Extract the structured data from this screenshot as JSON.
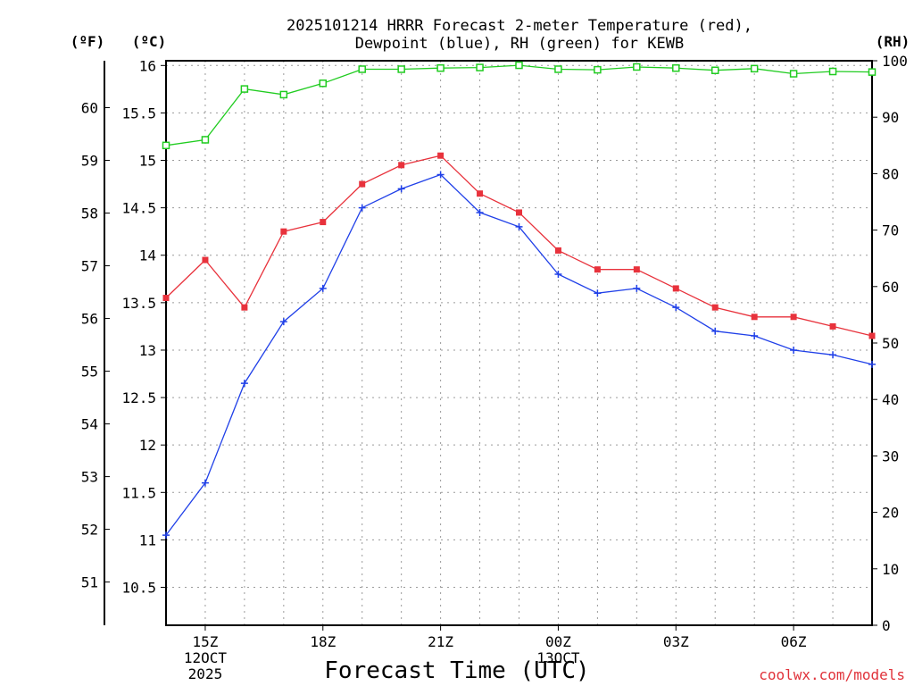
{
  "chart_data": {
    "type": "line",
    "title_line1": "2025101214 HRRR Forecast 2-meter Temperature (red),",
    "title_line2": "Dewpoint (blue), RH (green) for KEWB",
    "xlabel": "Forecast Time (UTC)",
    "credit": "coolwx.com/models",
    "units": {
      "fahrenheit": "(ºF)",
      "celsius": "(ºC)",
      "rh": "(RH)"
    },
    "x_hours": [
      14,
      15,
      16,
      17,
      18,
      19,
      20,
      21,
      22,
      23,
      24,
      25,
      26,
      27,
      28,
      29,
      30,
      31,
      32
    ],
    "xlim": [
      14,
      32
    ],
    "x_ticks": [
      {
        "hour": 15,
        "lines": [
          "15Z",
          "12OCT",
          "2025"
        ]
      },
      {
        "hour": 18,
        "lines": [
          "18Z"
        ]
      },
      {
        "hour": 21,
        "lines": [
          "21Z"
        ]
      },
      {
        "hour": 24,
        "lines": [
          "00Z",
          "13OCT"
        ]
      },
      {
        "hour": 27,
        "lines": [
          "03Z"
        ]
      },
      {
        "hour": 30,
        "lines": [
          "06Z"
        ]
      }
    ],
    "celsius_axis": {
      "ylim": [
        10.1,
        16.05
      ],
      "ticks": [
        "10.5",
        "11",
        "11.5",
        "12",
        "12.5",
        "13",
        "13.5",
        "14",
        "14.5",
        "15",
        "15.5",
        "16"
      ]
    },
    "fahrenheit_axis": {
      "ticks": [
        "51",
        "52",
        "53",
        "54",
        "55",
        "56",
        "57",
        "58",
        "59",
        "60"
      ]
    },
    "rh_axis": {
      "ylim": [
        0,
        100
      ],
      "ticks": [
        "0",
        "10",
        "20",
        "30",
        "40",
        "50",
        "60",
        "70",
        "80",
        "90",
        "100"
      ]
    },
    "series": [
      {
        "name": "Temperature",
        "axis": "celsius",
        "color": "#e8323c",
        "marker": "filled-square",
        "values": [
          13.55,
          13.95,
          13.45,
          14.25,
          14.35,
          14.75,
          14.95,
          15.05,
          14.65,
          14.45,
          14.05,
          13.85,
          13.85,
          13.65,
          13.45,
          13.35,
          13.35,
          13.25,
          13.15
        ]
      },
      {
        "name": "Dewpoint",
        "axis": "celsius",
        "color": "#2040e8",
        "marker": "plus",
        "values": [
          11.05,
          11.6,
          12.65,
          13.3,
          13.65,
          14.5,
          14.7,
          14.85,
          14.45,
          14.3,
          13.8,
          13.6,
          13.65,
          13.45,
          13.2,
          13.15,
          13.0,
          12.95,
          12.85
        ]
      },
      {
        "name": "RH",
        "axis": "rh",
        "color": "#20cc20",
        "marker": "open-square",
        "values": [
          85,
          86,
          95,
          94,
          96,
          98.5,
          98.5,
          98.7,
          98.8,
          99.2,
          98.5,
          98.4,
          98.9,
          98.7,
          98.3,
          98.6,
          97.7,
          98.1,
          98.0
        ]
      }
    ]
  }
}
